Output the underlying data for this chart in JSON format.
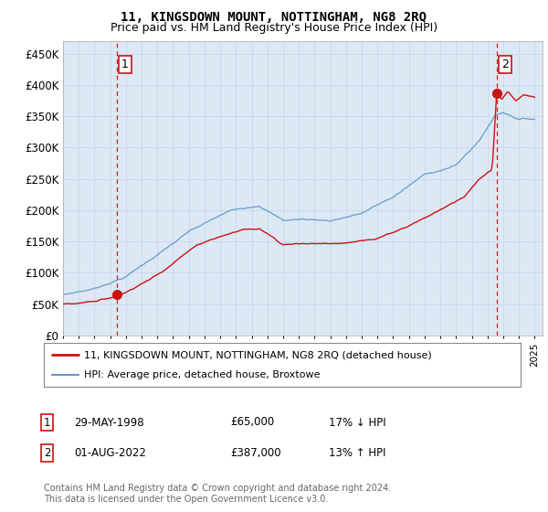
{
  "title": "11, KINGSDOWN MOUNT, NOTTINGHAM, NG8 2RQ",
  "subtitle": "Price paid vs. HM Land Registry's House Price Index (HPI)",
  "ylabel_ticks": [
    "£0",
    "£50K",
    "£100K",
    "£150K",
    "£200K",
    "£250K",
    "£300K",
    "£350K",
    "£400K",
    "£450K"
  ],
  "ytick_values": [
    0,
    50000,
    100000,
    150000,
    200000,
    250000,
    300000,
    350000,
    400000,
    450000
  ],
  "ylim": [
    0,
    470000
  ],
  "xlim_start": 1995.0,
  "xlim_end": 2025.5,
  "sale1_x": 1998.41,
  "sale1_y": 65000,
  "sale1_label": "1",
  "sale2_x": 2022.58,
  "sale2_y": 387000,
  "sale2_label": "2",
  "red_color": "#cc1111",
  "blue_color": "#6699cc",
  "dashed_color": "#cc2222",
  "grid_color": "#c8d8e8",
  "plot_bg": "#dce9f5",
  "legend_line1": "11, KINGSDOWN MOUNT, NOTTINGHAM, NG8 2RQ (detached house)",
  "legend_line2": "HPI: Average price, detached house, Broxtowe",
  "ann1_date": "29-MAY-1998",
  "ann1_price": "£65,000",
  "ann1_hpi": "17% ↓ HPI",
  "ann2_date": "01-AUG-2022",
  "ann2_price": "£387,000",
  "ann2_hpi": "13% ↑ HPI",
  "footer": "Contains HM Land Registry data © Crown copyright and database right 2024.\nThis data is licensed under the Open Government Licence v3.0.",
  "title_fontsize": 10,
  "subtitle_fontsize": 9
}
